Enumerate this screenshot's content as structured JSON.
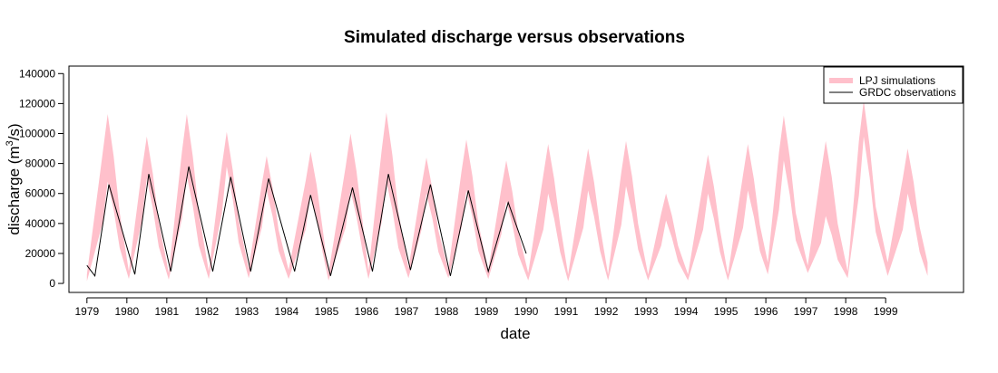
{
  "chart_data": {
    "type": "area",
    "title": "Simulated discharge versus observations",
    "xlabel": "date",
    "ylabel": "discharge (m³/s)",
    "ylabel_parts": {
      "prefix": "discharge (m",
      "sup": "3",
      "suffix": "/s)"
    },
    "xlim": [
      1978.55,
      2000.95
    ],
    "ylim": [
      -6000,
      145000
    ],
    "x_ticks": [
      1979,
      1980,
      1981,
      1982,
      1983,
      1984,
      1985,
      1986,
      1987,
      1988,
      1989,
      1990,
      1991,
      1992,
      1993,
      1994,
      1995,
      1996,
      1997,
      1998,
      1999
    ],
    "x_tick_labels": [
      "1979",
      "1980",
      "1981",
      "1982",
      "1983",
      "1984",
      "1985",
      "1986",
      "1987",
      "1988",
      "1989",
      "1990",
      "1991",
      "1992",
      "1993",
      "1994",
      "1995",
      "1996",
      "1997",
      "1998",
      "1999"
    ],
    "y_ticks": [
      0,
      20000,
      40000,
      60000,
      80000,
      100000,
      120000,
      140000
    ],
    "y_tick_labels": [
      "0",
      "20000",
      "40000",
      "60000",
      "80000",
      "100000",
      "120000",
      "140000"
    ],
    "grid": false,
    "legend": {
      "position": "top-right",
      "entries": [
        {
          "label": "LPJ simulations",
          "color": "#ffc0cb",
          "style": "band"
        },
        {
          "label": "GRDC observations",
          "color": "#000000",
          "style": "line"
        }
      ]
    },
    "series": [
      {
        "name": "LPJ simulations",
        "kind": "band",
        "color": "#ffc0cb",
        "peak_x": [
          1979.52,
          1980.5,
          1981.5,
          1982.5,
          1983.5,
          1984.6,
          1985.6,
          1986.5,
          1987.5,
          1988.5,
          1989.5,
          1990.55,
          1991.55,
          1992.5,
          1993.5,
          1994.55,
          1995.55,
          1996.45,
          1997.5,
          1998.45,
          1999.55
        ],
        "peak_lower": [
          68000,
          70000,
          72000,
          78000,
          62000,
          60000,
          62000,
          68000,
          60000,
          62000,
          55000,
          60000,
          62000,
          65000,
          42000,
          60000,
          62000,
          82000,
          45000,
          98000,
          60000
        ],
        "peak_upper": [
          113000,
          98000,
          113000,
          101000,
          85000,
          88000,
          100000,
          114000,
          84000,
          96000,
          82000,
          93000,
          90000,
          95000,
          60000,
          86000,
          93000,
          112000,
          95000,
          122000,
          90000
        ],
        "trough_lower": [
          1500,
          3000,
          2500,
          3000,
          3500,
          3000,
          2000,
          3000,
          3500,
          3500,
          3000,
          2000,
          1500,
          2000,
          2000,
          2000,
          2000,
          6000,
          7000,
          3500,
          5000
        ],
        "trough_upper": [
          6000,
          8000,
          7000,
          8000,
          10000,
          9000,
          7000,
          8000,
          10000,
          9000,
          9000,
          7000,
          6000,
          6000,
          6000,
          6000,
          6000,
          14000,
          12000,
          8000,
          14000
        ]
      },
      {
        "name": "GRDC observations",
        "kind": "line",
        "color": "#000000",
        "x": [
          1979.0,
          1979.2,
          1979.55,
          1980.2,
          1980.55,
          1981.1,
          1981.55,
          1982.15,
          1982.6,
          1983.1,
          1983.55,
          1984.2,
          1984.6,
          1985.1,
          1985.65,
          1986.15,
          1986.55,
          1987.1,
          1987.6,
          1988.1,
          1988.55,
          1989.05,
          1989.55,
          1990.0
        ],
        "y": [
          12000,
          5000,
          66000,
          6000,
          73000,
          8000,
          78000,
          8000,
          71000,
          8000,
          70000,
          8000,
          59000,
          5000,
          64000,
          8000,
          73000,
          9000,
          66000,
          5000,
          62000,
          8000,
          54000,
          20000
        ]
      }
    ]
  }
}
